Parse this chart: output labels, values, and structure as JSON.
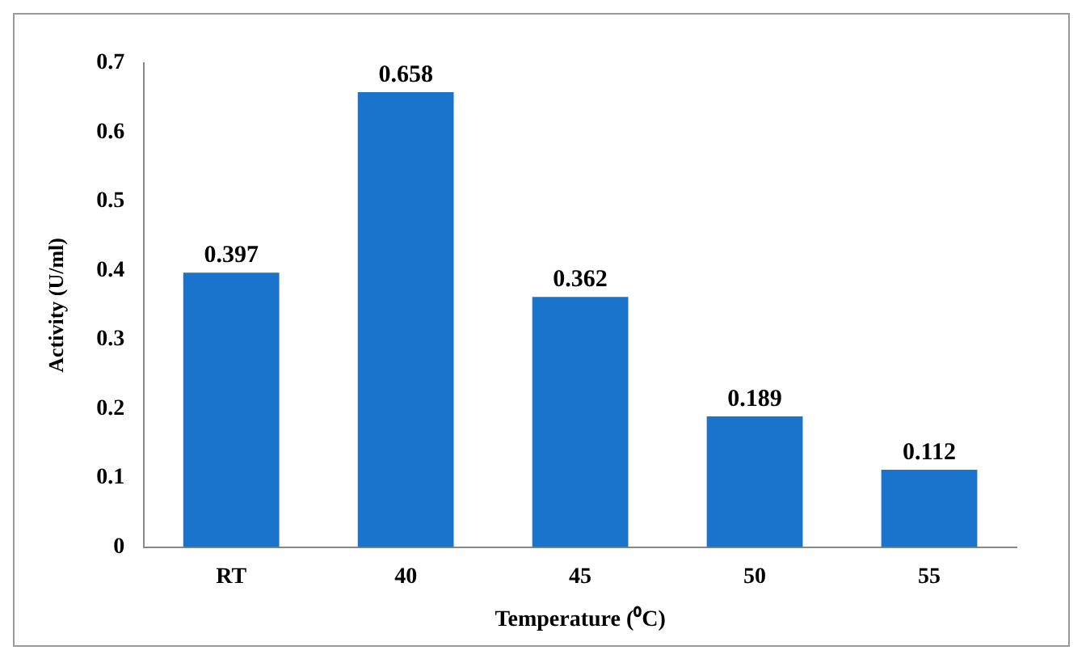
{
  "chart_data": {
    "type": "bar",
    "xlabel": "Temperature (⁰C)",
    "ylabel": "Activity (U/ml)",
    "categories": [
      "RT",
      "40",
      "45",
      "50",
      "55"
    ],
    "values": [
      0.397,
      0.658,
      0.362,
      0.189,
      0.112
    ],
    "color": "#1b74cc",
    "ylim": [
      0,
      0.7
    ],
    "yticks": [
      0,
      0.1,
      0.2,
      0.3,
      0.4,
      0.5,
      0.6,
      0.7
    ],
    "grid": false,
    "legend": false,
    "data_labels": true
  }
}
